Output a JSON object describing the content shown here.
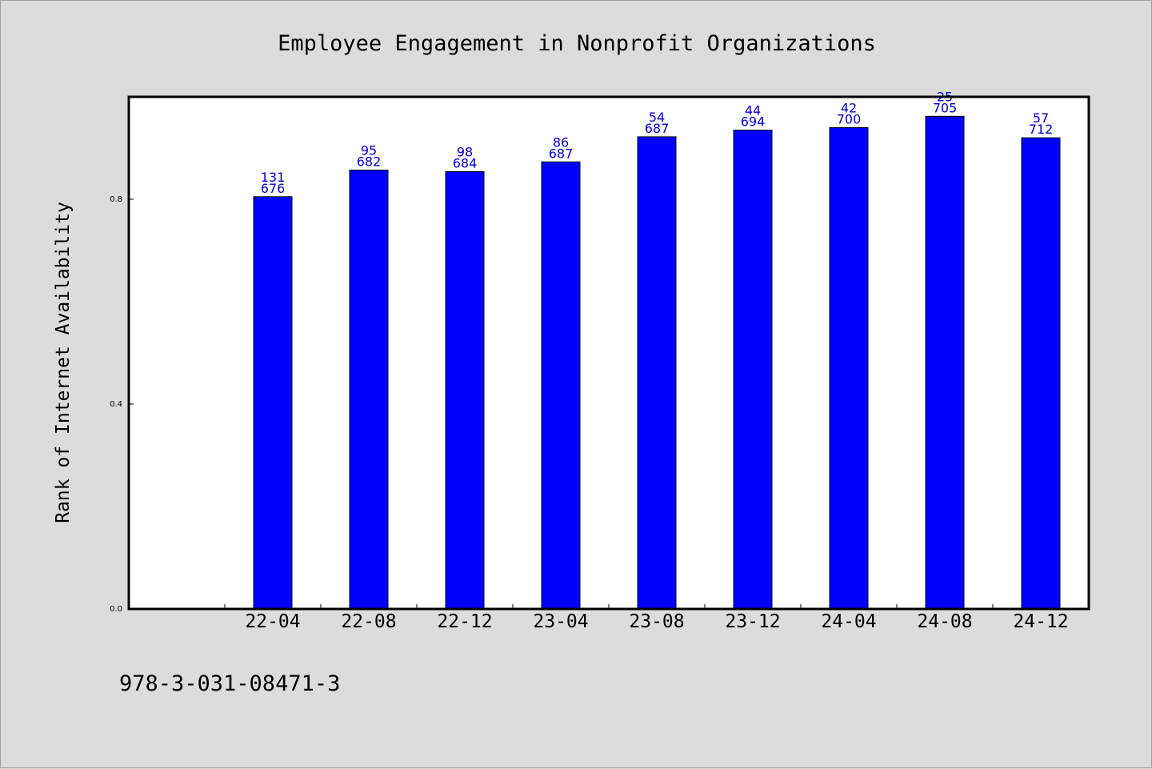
{
  "chart_data": {
    "type": "bar",
    "title": "Employee Engagement in Nonprofit Organizations",
    "ylabel": "Rank of Internet Availability",
    "xlabel": "",
    "ylim": [
      0,
      1.0
    ],
    "yticks": [
      {
        "value": 0.0,
        "label": "0.0"
      },
      {
        "value": 0.4,
        "label": "0.4"
      },
      {
        "value": 0.8,
        "label": "0.8"
      }
    ],
    "categories": [
      "22-04",
      "22-08",
      "22-12",
      "23-04",
      "23-08",
      "23-12",
      "24-04",
      "24-08",
      "24-12"
    ],
    "values": [
      0.805,
      0.857,
      0.854,
      0.873,
      0.922,
      0.935,
      0.94,
      0.962,
      0.92
    ],
    "data_labels": [
      {
        "top": "131",
        "bottom": "676"
      },
      {
        "top": "95",
        "bottom": "682"
      },
      {
        "top": "98",
        "bottom": "684"
      },
      {
        "top": "86",
        "bottom": "687"
      },
      {
        "top": "54",
        "bottom": "687"
      },
      {
        "top": "44",
        "bottom": "694"
      },
      {
        "top": "42",
        "bottom": "700"
      },
      {
        "top": "25",
        "bottom": "705"
      },
      {
        "top": "57",
        "bottom": "712"
      }
    ],
    "bar_color": "#0000ff",
    "label_color": "#0000cc",
    "background_color": "#dcdcdc",
    "plot_background": "#ffffff",
    "grid": false,
    "legend": "none"
  },
  "footnote": "978-3-031-08471-3"
}
